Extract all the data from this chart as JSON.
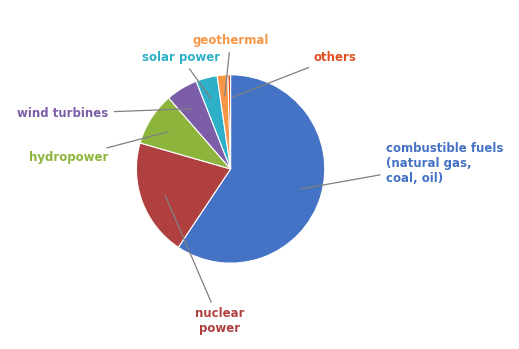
{
  "labels": [
    "combustible fuels\n(natural gas,\ncoal, oil)",
    "nuclear\npower",
    "hydropower",
    "wind turbines",
    "solar power",
    "geothermal",
    "others"
  ],
  "values": [
    65,
    22,
    10,
    6,
    4,
    2,
    0.5
  ],
  "colors": [
    "#4472C4",
    "#B04040",
    "#8DB53C",
    "#7B5EA7",
    "#2DB0C8",
    "#F79646",
    "#E05020"
  ],
  "label_colors": [
    "#4472C4",
    "#B04040",
    "#8DB53C",
    "#7B5EA7",
    "#2DB0C8",
    "#F79646",
    "#E05020"
  ],
  "wedge_edge_color": "white",
  "startangle": 90,
  "figsize": [
    5.19,
    3.49
  ],
  "dpi": 100,
  "background": "#ffffff"
}
